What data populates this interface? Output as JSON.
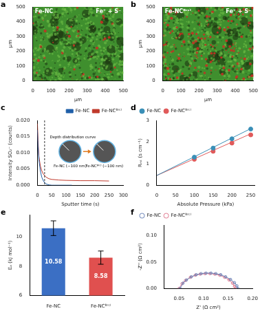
{
  "chart_data": [
    {
      "panel": "a",
      "type": "image",
      "title": "Fe-NC",
      "annotation": "Fe⁺ + S⁻",
      "x_label": "μm",
      "y_label": "μm",
      "xlim": [
        0,
        500
      ],
      "ylim": [
        0,
        500
      ],
      "xticks": [
        0,
        100,
        200,
        300,
        400,
        500
      ],
      "yticks": [
        0,
        100,
        200,
        300,
        400,
        500
      ],
      "grid": false
    },
    {
      "panel": "b",
      "type": "image",
      "title": "Fe-NCᴮʳᶜˡ",
      "annotation": "Fe⁺ + S⁻",
      "x_label": "μm",
      "y_label": "μm",
      "xlim": [
        0,
        500
      ],
      "ylim": [
        0,
        500
      ],
      "xticks": [
        0,
        100,
        200,
        300,
        400,
        500
      ],
      "yticks": [
        0,
        100,
        200,
        300,
        400,
        500
      ],
      "grid": false
    },
    {
      "panel": "c",
      "type": "line",
      "x_label": "Sputter time (s)",
      "y_label": "Intensity SO₂⁻ (counts)",
      "xlim": [
        0,
        300
      ],
      "ylim": [
        0,
        0.02
      ],
      "xticks": [
        0,
        50,
        100,
        150,
        200,
        250,
        300
      ],
      "yticks": [
        {
          "value": 0,
          "label": "0.000"
        },
        {
          "value": 0.005,
          "label": "0.005"
        },
        {
          "value": 0.01,
          "label": "0.010"
        },
        {
          "value": 0.015,
          "label": "0.015"
        },
        {
          "value": 0.02,
          "label": "0.020"
        }
      ],
      "grid": false,
      "legend": "top-right",
      "series": [
        {
          "name": "Fe-NC",
          "color": "#1f5fa8",
          "x": [
            0,
            2,
            5,
            10,
            15,
            20,
            25,
            30,
            40,
            50,
            60,
            80,
            100,
            120
          ],
          "values": [
            0.017,
            0.012,
            0.008,
            0.0045,
            0.0025,
            0.0015,
            0.0008,
            0.0004,
            0.0001,
            0,
            0,
            0,
            0,
            0
          ]
        },
        {
          "name": "Fe-NCᴮʳᶜˡ",
          "color": "#c0392b",
          "x": [
            0,
            2,
            5,
            10,
            15,
            20,
            30,
            40,
            50,
            75,
            100,
            150,
            200,
            250
          ],
          "values": [
            0.019,
            0.014,
            0.009,
            0.006,
            0.0045,
            0.0035,
            0.0025,
            0.002,
            0.0018,
            0.0016,
            0.0015,
            0.0014,
            0.0014,
            0.0013
          ]
        }
      ],
      "vertical_line": {
        "x": 25,
        "line_style": "dashed"
      },
      "inset": {
        "title": "Depth distribution curve",
        "labels": [
          "Fe-NC (~100 nm)",
          "Fe-NCᴮʳᶜˡ (~100 nm)"
        ]
      }
    },
    {
      "panel": "d",
      "type": "scatter",
      "x_label": "Absolute Pressure (kPa)",
      "y_label": "Rₘₜ (s cm⁻¹)",
      "xlim": [
        0,
        260
      ],
      "ylim": [
        0,
        3
      ],
      "xticks": [
        0,
        50,
        100,
        150,
        200,
        250
      ],
      "yticks": [
        0,
        1,
        2,
        3
      ],
      "grid": false,
      "legend": "top-left",
      "series": [
        {
          "name": "Fe-NC",
          "color": "#3a8fb7",
          "marker": "circle",
          "x": [
            100,
            150,
            200,
            250
          ],
          "values": [
            1.3,
            1.72,
            2.15,
            2.6
          ],
          "fit": {
            "x": [
              0,
              250
            ],
            "values": [
              0.45,
              2.62
            ]
          }
        },
        {
          "name": "Fe-NCᴮʳᶜˡ",
          "color": "#e05a5a",
          "marker": "circle",
          "x": [
            100,
            150,
            200,
            250
          ],
          "values": [
            1.2,
            1.57,
            1.95,
            2.33
          ],
          "fit": {
            "x": [
              0,
              250
            ],
            "values": [
              0.45,
              2.38
            ]
          }
        }
      ]
    },
    {
      "panel": "e",
      "type": "bar",
      "y_label": "Eₐ (kJ mol⁻¹)",
      "categories": [
        "Fe-NC",
        "Fe-NCᴮʳᶜˡ"
      ],
      "values": [
        10.58,
        8.58
      ],
      "errors": [
        0.5,
        0.45
      ],
      "colors": [
        "#3b6fc4",
        "#e0504f"
      ],
      "ylim": [
        6,
        11.5
      ],
      "yticks": [
        6,
        8,
        10
      ],
      "grid": false,
      "data_labels": true
    },
    {
      "panel": "f",
      "type": "line",
      "x_label": "Z' (Ω cm²)",
      "y_label": "-Z'' (Ω cm²)",
      "xlim": [
        0.02,
        0.2
      ],
      "ylim": [
        0,
        0.12
      ],
      "xticks": [
        {
          "value": 0.05,
          "label": "0.05"
        },
        {
          "value": 0.1,
          "label": "0.10"
        },
        {
          "value": 0.15,
          "label": "0.15"
        },
        {
          "value": 0.2,
          "label": "0.20"
        }
      ],
      "yticks": [
        {
          "value": 0,
          "label": "0.00"
        },
        {
          "value": 0.05,
          "label": "0.05"
        },
        {
          "value": 0.1,
          "label": "0.10"
        }
      ],
      "grid": false,
      "legend": "top-left",
      "series": [
        {
          "name": "Fe-NC",
          "color": "#6b84b8",
          "marker": "circle",
          "x": [
            0.052,
            0.058,
            0.065,
            0.075,
            0.085,
            0.095,
            0.105,
            0.115,
            0.125,
            0.135,
            0.145,
            0.155,
            0.163,
            0.168,
            0.17
          ],
          "values": [
            0,
            0.01,
            0.016,
            0.022,
            0.026,
            0.028,
            0.029,
            0.029,
            0.028,
            0.026,
            0.022,
            0.017,
            0.011,
            0.005,
            0
          ]
        },
        {
          "name": "Fe-NCᴮʳᶜˡ",
          "color": "#e07a8f",
          "marker": "circle",
          "x": [
            0.05,
            0.056,
            0.063,
            0.073,
            0.083,
            0.093,
            0.103,
            0.113,
            0.123,
            0.133,
            0.143,
            0.152,
            0.159,
            0.163,
            0.165
          ],
          "values": [
            0,
            0.009,
            0.015,
            0.021,
            0.025,
            0.027,
            0.028,
            0.028,
            0.027,
            0.025,
            0.021,
            0.016,
            0.01,
            0.004,
            0
          ]
        }
      ]
    }
  ]
}
